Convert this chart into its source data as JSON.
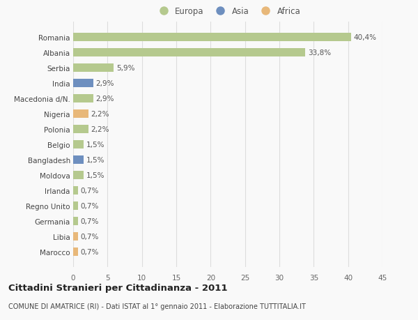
{
  "categories": [
    "Romania",
    "Albania",
    "Serbia",
    "India",
    "Macedonia d/N.",
    "Nigeria",
    "Polonia",
    "Belgio",
    "Bangladesh",
    "Moldova",
    "Irlanda",
    "Regno Unito",
    "Germania",
    "Libia",
    "Marocco"
  ],
  "values": [
    40.4,
    33.8,
    5.9,
    2.9,
    2.9,
    2.2,
    2.2,
    1.5,
    1.5,
    1.5,
    0.7,
    0.7,
    0.7,
    0.7,
    0.7
  ],
  "labels": [
    "40,4%",
    "33,8%",
    "5,9%",
    "2,9%",
    "2,9%",
    "2,2%",
    "2,2%",
    "1,5%",
    "1,5%",
    "1,5%",
    "0,7%",
    "0,7%",
    "0,7%",
    "0,7%",
    "0,7%"
  ],
  "continents": [
    "Europa",
    "Europa",
    "Europa",
    "Asia",
    "Europa",
    "Africa",
    "Europa",
    "Europa",
    "Asia",
    "Europa",
    "Europa",
    "Europa",
    "Europa",
    "Africa",
    "Africa"
  ],
  "continent_colors": {
    "Europa": "#b5c98e",
    "Asia": "#6e8fbf",
    "Africa": "#e8b87a"
  },
  "xlim": [
    0,
    45
  ],
  "xticks": [
    0,
    5,
    10,
    15,
    20,
    25,
    30,
    35,
    40,
    45
  ],
  "title": "Cittadini Stranieri per Cittadinanza - 2011",
  "subtitle": "COMUNE DI AMATRICE (RI) - Dati ISTAT al 1° gennaio 2011 - Elaborazione TUTTITALIA.IT",
  "background_color": "#f9f9f9",
  "grid_color": "#dddddd",
  "bar_height": 0.55,
  "legend_entries": [
    "Europa",
    "Asia",
    "Africa"
  ]
}
